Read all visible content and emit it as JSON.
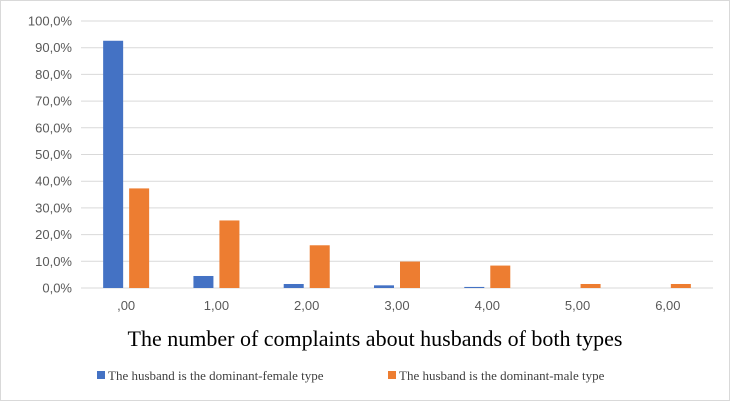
{
  "chart_data": {
    "type": "bar",
    "categories": [
      ",00",
      "1,00",
      "2,00",
      "3,00",
      "4,00",
      "5,00",
      "6,00"
    ],
    "series": [
      {
        "name": "The husband is the dominant-female type",
        "color": "#4472c4",
        "values": [
          92.6,
          4.5,
          1.5,
          1.0,
          0.4,
          0,
          0
        ]
      },
      {
        "name": "The husband is the dominant-male type",
        "color": "#ed7d31",
        "values": [
          37.3,
          25.3,
          16.0,
          9.9,
          8.4,
          1.5,
          1.5
        ]
      }
    ],
    "y_ticks": [
      "0,0%",
      "10,0%",
      "20,0%",
      "30,0%",
      "40,0%",
      "50,0%",
      "60,0%",
      "70,0%",
      "80,0%",
      "90,0%",
      "100,0%"
    ],
    "ylim": [
      0,
      100
    ],
    "title": "",
    "xlabel": "The number of complaints about husbands of both types",
    "ylabel": "",
    "grid": true,
    "legend_position": "bottom"
  }
}
